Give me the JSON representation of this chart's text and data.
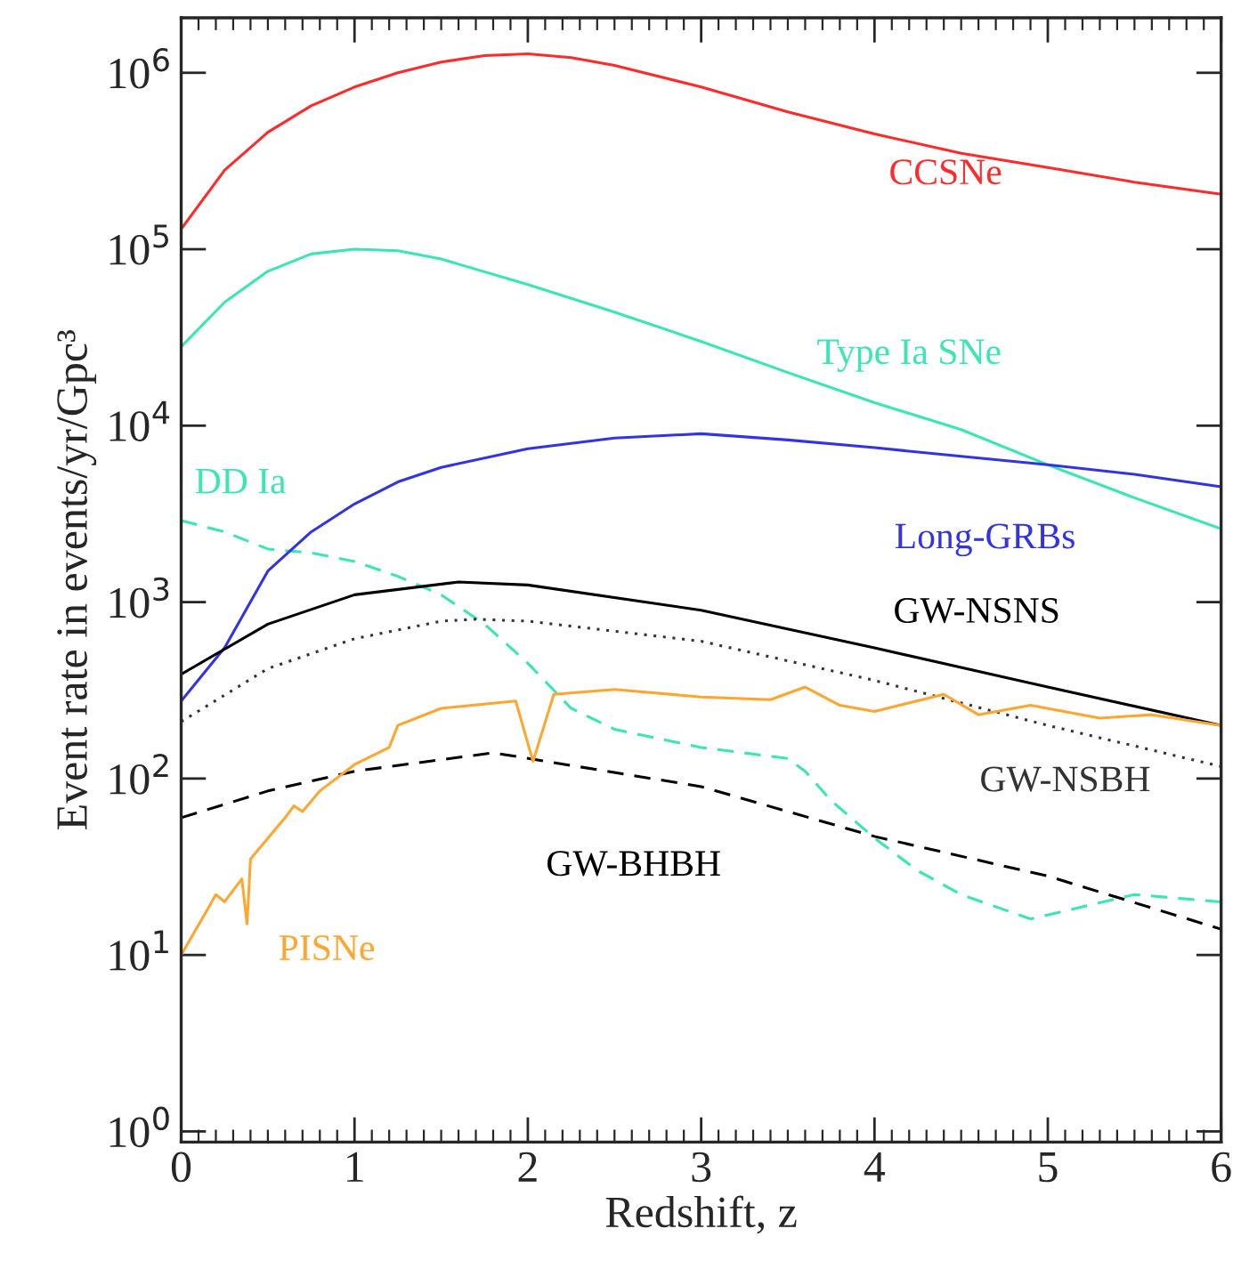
{
  "chart_data": {
    "type": "line",
    "xlabel": "Redshift, z",
    "ylabel": "Event rate in events/yr/Gpc³",
    "log": "y",
    "grid": false,
    "marker": "none",
    "xlim": [
      0,
      6
    ],
    "xticks": [
      0,
      1,
      2,
      3,
      4,
      5,
      6
    ],
    "ylim": [
      0.87,
      2050000
    ],
    "yticks": [
      {
        "value": 1,
        "label": "10$^{0}$"
      },
      {
        "value": 10,
        "label": "10$^{1}$"
      },
      {
        "value": 100,
        "label": "10$^{2}$"
      },
      {
        "value": 1000,
        "label": "10$^{3}$"
      },
      {
        "value": 10000,
        "label": "10$^{4}$"
      },
      {
        "value": 100000,
        "label": "10$^{5}$"
      },
      {
        "value": 1000000,
        "label": "10$^{6}$"
      }
    ],
    "series": [
      {
        "name": "CCSNe",
        "color": "#ff2a2a",
        "line_style": "solid",
        "x": [
          0,
          0.25,
          0.5,
          0.75,
          1,
          1.25,
          1.5,
          1.75,
          2,
          2.25,
          2.5,
          3,
          3.5,
          4,
          4.5,
          5,
          5.5,
          6
        ],
        "values": [
          130000,
          280000,
          460000,
          650000,
          830000,
          1000000,
          1150000,
          1250000,
          1280000,
          1220000,
          1100000,
          830000,
          600000,
          450000,
          350000,
          290000,
          240000,
          205000
        ]
      },
      {
        "name": "Type Ia SNe",
        "color": "#3ae6b4",
        "line_style": "solid",
        "x": [
          0,
          0.25,
          0.5,
          0.75,
          1,
          1.25,
          1.5,
          2,
          2.5,
          3,
          3.5,
          4,
          4.5,
          5,
          5.5,
          6
        ],
        "values": [
          28000,
          50000,
          75000,
          94000,
          100000,
          98000,
          88000,
          63000,
          44000,
          30000,
          20000,
          13500,
          9500,
          6000,
          3900,
          2600
        ]
      },
      {
        "name": "DD Ia",
        "color": "#3ae6b4",
        "line_style": "dashed",
        "x": [
          0,
          0.25,
          0.5,
          0.75,
          1,
          1.25,
          1.5,
          1.75,
          2,
          2.25,
          2.5,
          3,
          3.5,
          3.6,
          3.75,
          4,
          4.25,
          4.5,
          4.9,
          5.5,
          6
        ],
        "values": [
          2900,
          2500,
          2000,
          1900,
          1700,
          1400,
          1100,
          750,
          450,
          250,
          190,
          150,
          130,
          110,
          75,
          46,
          30,
          22,
          16,
          22,
          20
        ]
      },
      {
        "name": "Long-GRBs",
        "color": "#3333e6",
        "line_style": "solid",
        "x": [
          0,
          0.25,
          0.5,
          0.75,
          1,
          1.25,
          1.5,
          2,
          2.5,
          3,
          3.5,
          4,
          4.5,
          5,
          5.5,
          6
        ],
        "values": [
          275,
          550,
          1500,
          2500,
          3600,
          4800,
          5800,
          7400,
          8500,
          9000,
          8300,
          7500,
          6700,
          6000,
          5300,
          4500
        ]
      },
      {
        "name": "GW-NSNS",
        "color": "#000000",
        "line_style": "solid",
        "x": [
          0,
          0.5,
          1,
          1.6,
          2,
          3,
          4,
          5,
          6
        ],
        "values": [
          390,
          750,
          1100,
          1300,
          1250,
          900,
          550,
          330,
          200
        ]
      },
      {
        "name": "GW-NSBH",
        "color": "#333333",
        "line_style": "dotted",
        "x": [
          0,
          0.5,
          1,
          1.5,
          1.7,
          2,
          3,
          4,
          5,
          6
        ],
        "values": [
          210,
          420,
          620,
          780,
          800,
          780,
          600,
          360,
          200,
          117
        ]
      },
      {
        "name": "GW-BHBH",
        "color": "#000000",
        "line_style": "dashed",
        "x": [
          0,
          0.5,
          1,
          1.8,
          3,
          4,
          5,
          6
        ],
        "values": [
          60,
          85,
          110,
          140,
          90,
          47,
          28,
          14
        ]
      },
      {
        "name": "PISNe",
        "color": "#ffa630",
        "line_style": "solid",
        "x": [
          0,
          0.15,
          0.2,
          0.25,
          0.35,
          0.38,
          0.4,
          0.6,
          0.65,
          0.7,
          0.8,
          1,
          1.2,
          1.25,
          1.5,
          1.93,
          2.03,
          2.15,
          2.5,
          3,
          3.4,
          3.6,
          3.8,
          4,
          4.4,
          4.6,
          4.9,
          5.3,
          5.6,
          6
        ],
        "values": [
          10,
          18,
          22,
          20,
          27,
          15,
          35,
          60,
          70,
          65,
          85,
          120,
          150,
          200,
          250,
          275,
          125,
          300,
          320,
          290,
          280,
          330,
          260,
          240,
          300,
          230,
          260,
          220,
          230,
          200
        ]
      }
    ]
  }
}
